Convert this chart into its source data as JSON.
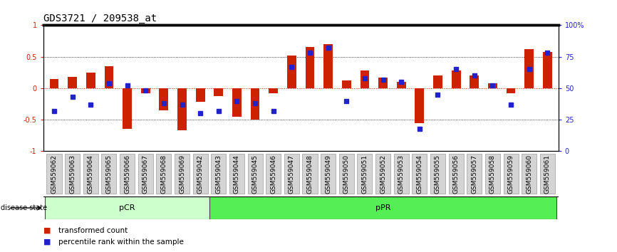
{
  "title": "GDS3721 / 209538_at",
  "categories": [
    "GSM559062",
    "GSM559063",
    "GSM559064",
    "GSM559065",
    "GSM559066",
    "GSM559067",
    "GSM559068",
    "GSM559069",
    "GSM559042",
    "GSM559043",
    "GSM559044",
    "GSM559045",
    "GSM559046",
    "GSM559047",
    "GSM559048",
    "GSM559049",
    "GSM559050",
    "GSM559051",
    "GSM559052",
    "GSM559053",
    "GSM559054",
    "GSM559055",
    "GSM559056",
    "GSM559057",
    "GSM559058",
    "GSM559059",
    "GSM559060",
    "GSM559061"
  ],
  "bar_values": [
    0.15,
    0.18,
    0.25,
    0.35,
    -0.65,
    -0.08,
    -0.35,
    -0.67,
    -0.22,
    -0.12,
    -0.45,
    -0.5,
    -0.08,
    0.52,
    0.65,
    0.7,
    0.12,
    0.28,
    0.17,
    0.1,
    -0.55,
    0.2,
    0.28,
    0.2,
    0.08,
    -0.08,
    0.62,
    0.58
  ],
  "percentile_values": [
    0.32,
    0.43,
    0.37,
    0.54,
    0.52,
    0.48,
    0.38,
    0.37,
    0.3,
    0.32,
    0.4,
    0.38,
    0.32,
    0.67,
    0.78,
    0.82,
    0.4,
    0.58,
    0.57,
    0.55,
    0.18,
    0.45,
    0.65,
    0.6,
    0.52,
    0.37,
    0.65,
    0.78
  ],
  "group_labels": [
    "pCR",
    "pPR"
  ],
  "pcr_count": 9,
  "ppr_count": 19,
  "group_colors": [
    "#ccffcc",
    "#55ee55"
  ],
  "bar_color": "#cc2200",
  "scatter_color": "#2222cc",
  "ylim": [
    -1,
    1
  ],
  "y2lim": [
    0,
    100
  ],
  "yticks": [
    -1,
    -0.5,
    0,
    0.5,
    1
  ],
  "y2ticks": [
    0,
    25,
    50,
    75,
    100
  ],
  "y2ticklabels": [
    "0",
    "25",
    "50",
    "75",
    "100%"
  ],
  "title_fontsize": 10,
  "tick_fontsize": 7,
  "label_fontsize": 8,
  "legend_fontsize": 7.5
}
